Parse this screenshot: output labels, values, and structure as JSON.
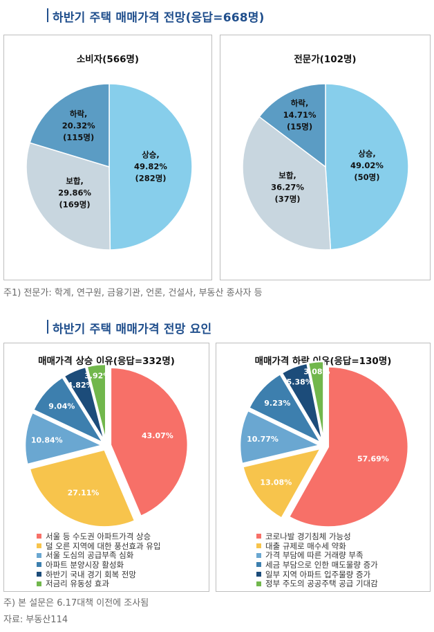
{
  "section1_title": "하반기 주택 매매가격 전망(응답=668명)",
  "section2_title": "하반기 주택 매매가격 전망 요인",
  "footnote1": "주1) 전문가: 학계, 연구원, 금융기관, 언론, 건설사, 부동산 종사자 등",
  "footnote2": "주) 본 설문은 6.17대책 이전에 조사됨",
  "source": "자료: 부동산114",
  "colors": {
    "outlook_up": "#87ceeb",
    "outlook_flat": "#c8d6df",
    "outlook_down": "#5b9cc4",
    "red": "#f77068",
    "yellow": "#f7c44c",
    "lightblue": "#6aa7d1",
    "teal": "#3d7fae",
    "navy": "#1c4c7a",
    "green": "#71b74c"
  },
  "chart_data": [
    {
      "type": "pie",
      "title": "소비자(566명)",
      "labels": [
        "상승,",
        "보합,",
        "하락,"
      ],
      "values": [
        49.82,
        29.86,
        20.32
      ],
      "display": [
        "49.82%",
        "29.86%",
        "20.32%"
      ],
      "counts": [
        "(282명)",
        "(169명)",
        "(115명)"
      ],
      "colors": [
        "#87ceeb",
        "#c8d6df",
        "#5b9cc4"
      ]
    },
    {
      "type": "pie",
      "title": "전문가(102명)",
      "labels": [
        "상승,",
        "보합,",
        "하락,"
      ],
      "values": [
        49.02,
        36.27,
        14.71
      ],
      "display": [
        "49.02%",
        "36.27%",
        "14.71%"
      ],
      "counts": [
        "(50명)",
        "(37명)",
        "(15명)"
      ],
      "colors": [
        "#87ceeb",
        "#c8d6df",
        "#5b9cc4"
      ]
    },
    {
      "type": "pie",
      "title": "매매가격 상승 이유(응답=332명)",
      "labels": [
        "서울 등 수도권 아파트가격 상승",
        "덜 오른 지역에 대한 풍선효과 유입",
        "서울 도심의 공급부족 심화",
        "아파트 분양시장 활성화",
        "하반기 국내 경기 회복 전망",
        "저금리 유동성 효과"
      ],
      "values": [
        43.07,
        27.11,
        10.84,
        9.04,
        4.82,
        3.92
      ],
      "display": [
        "43.07%",
        "27.11%",
        "10.84%",
        "9.04%",
        "4.82%",
        "3.92%"
      ],
      "colors": [
        "#f77068",
        "#f7c44c",
        "#6aa7d1",
        "#3d7fae",
        "#1c4c7a",
        "#71b74c"
      ]
    },
    {
      "type": "pie",
      "title": "매매가격 하락 이유(응답=130명)",
      "labels": [
        "코로나발 경기침체 가능성",
        "대출 규제로 매수세 약화",
        "가격 부담에 따른 거래량 부족",
        "세금 부담으로 인한 매도물량 증가",
        "일부 지역 아파트 입주물량 증가",
        "정부 주도의 공공주택 공급 기대감"
      ],
      "values": [
        57.69,
        13.08,
        10.77,
        9.23,
        5.38,
        3.08
      ],
      "display": [
        "57.69%",
        "13.08%",
        "10.77%",
        "9.23%",
        "5.38%",
        "3.08%"
      ],
      "colors": [
        "#f77068",
        "#f7c44c",
        "#6aa7d1",
        "#3d7fae",
        "#1c4c7a",
        "#71b74c"
      ]
    }
  ]
}
